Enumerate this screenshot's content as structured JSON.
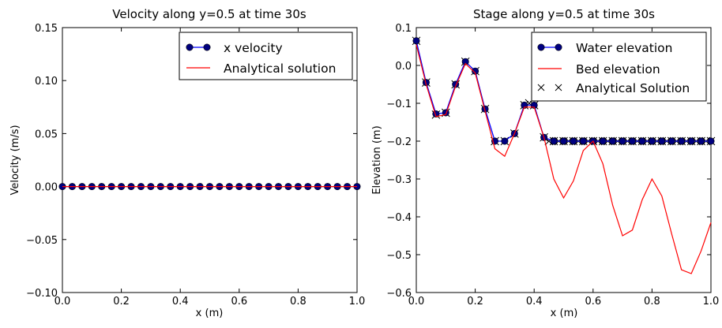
{
  "chart_data": [
    {
      "type": "line",
      "title": "Velocity along y=0.5 at time 30s",
      "xlabel": "x (m)",
      "ylabel": "Velocity (m/s)",
      "xlim": [
        0.0,
        1.0
      ],
      "ylim": [
        -0.1,
        0.15
      ],
      "xticks": [
        "0.0",
        "0.2",
        "0.4",
        "0.6",
        "0.8",
        "1.0"
      ],
      "yticks": [
        "−0.10",
        "−0.05",
        "0.00",
        "0.05",
        "0.10",
        "0.15"
      ],
      "grid": false,
      "legend_position": "top-right",
      "x": [
        0.0,
        0.0333,
        0.0667,
        0.1,
        0.1333,
        0.1667,
        0.2,
        0.2333,
        0.2667,
        0.3,
        0.3333,
        0.3667,
        0.4,
        0.4333,
        0.4667,
        0.5,
        0.5333,
        0.5667,
        0.6,
        0.6333,
        0.6667,
        0.7,
        0.7333,
        0.7667,
        0.8,
        0.8333,
        0.8667,
        0.9,
        0.9333,
        0.9667,
        1.0
      ],
      "series": [
        {
          "name": "x velocity",
          "style": "line-markers",
          "color": "#0000ff",
          "marker_color": "#00007f",
          "values": [
            0,
            0,
            0,
            0,
            0,
            0,
            0,
            0,
            0,
            0,
            0,
            0,
            0,
            0,
            0,
            0,
            0,
            0,
            0,
            0,
            0,
            0,
            0,
            0,
            0,
            0,
            0,
            0,
            0,
            0,
            0
          ]
        },
        {
          "name": "Analytical solution",
          "style": "line",
          "color": "#ff0000",
          "values": [
            0,
            0,
            0,
            0,
            0,
            0,
            0,
            0,
            0,
            0,
            0,
            0,
            0,
            0,
            0,
            0,
            0,
            0,
            0,
            0,
            0,
            0,
            0,
            0,
            0,
            0,
            0,
            0,
            0,
            0,
            0
          ]
        }
      ]
    },
    {
      "type": "line",
      "title": "Stage along y=0.5 at time 30s",
      "xlabel": "x (m)",
      "ylabel": "Elevation (m)",
      "xlim": [
        0.0,
        1.0
      ],
      "ylim": [
        -0.6,
        0.1
      ],
      "xticks": [
        "0.0",
        "0.2",
        "0.4",
        "0.6",
        "0.8",
        "1.0"
      ],
      "yticks": [
        "−0.6",
        "−0.5",
        "−0.4",
        "−0.3",
        "−0.2",
        "−0.1",
        "0.0",
        "0.1"
      ],
      "grid": false,
      "legend_position": "top-right",
      "x": [
        0.0,
        0.0333,
        0.0667,
        0.1,
        0.1333,
        0.1667,
        0.2,
        0.2333,
        0.2667,
        0.3,
        0.3333,
        0.3667,
        0.4,
        0.4333,
        0.4667,
        0.5,
        0.5333,
        0.5667,
        0.6,
        0.6333,
        0.6667,
        0.7,
        0.7333,
        0.7667,
        0.8,
        0.8333,
        0.8667,
        0.9,
        0.9333,
        0.9667,
        1.0
      ],
      "series": [
        {
          "name": "Water elevation",
          "style": "line-markers",
          "color": "#0000ff",
          "marker_color": "#00007f",
          "values": [
            0.065,
            -0.045,
            -0.128,
            -0.125,
            -0.05,
            0.01,
            -0.015,
            -0.115,
            -0.2,
            -0.2,
            -0.18,
            -0.105,
            -0.105,
            -0.19,
            -0.2,
            -0.2,
            -0.2,
            -0.2,
            -0.2,
            -0.2,
            -0.2,
            -0.2,
            -0.2,
            -0.2,
            -0.2,
            -0.2,
            -0.2,
            -0.2,
            -0.2,
            -0.2,
            -0.2
          ]
        },
        {
          "name": "Bed elevation",
          "style": "line",
          "color": "#ff0000",
          "x": [
            0.0,
            0.0333,
            0.0667,
            0.1,
            0.1333,
            0.1667,
            0.2,
            0.2333,
            0.2667,
            0.3,
            0.3333,
            0.3667,
            0.4,
            0.4333,
            0.4667,
            0.5,
            0.5333,
            0.5667,
            0.6,
            0.6333,
            0.6667,
            0.7,
            0.7333,
            0.7667,
            0.8,
            0.8333,
            0.8667,
            0.9,
            0.9333,
            0.9667,
            1.0
          ],
          "values": [
            0.055,
            -0.05,
            -0.135,
            -0.13,
            -0.055,
            0.005,
            -0.02,
            -0.12,
            -0.22,
            -0.24,
            -0.18,
            -0.11,
            -0.11,
            -0.19,
            -0.3,
            -0.35,
            -0.305,
            -0.225,
            -0.2,
            -0.26,
            -0.37,
            -0.45,
            -0.435,
            -0.355,
            -0.3,
            -0.345,
            -0.445,
            -0.54,
            -0.55,
            -0.49,
            -0.415
          ]
        },
        {
          "name": "Analytical Solution",
          "style": "markers-x",
          "color": "#000000",
          "x": [
            0.0,
            0.0333,
            0.0667,
            0.1,
            0.1333,
            0.1667,
            0.2,
            0.2333,
            0.2667,
            0.3,
            0.3333,
            0.3667,
            0.3833,
            0.4,
            0.4333,
            0.45,
            0.4667,
            0.4833,
            0.5,
            0.5167,
            0.5333,
            0.55,
            0.5667,
            0.5833,
            0.6,
            0.6167,
            0.6333,
            0.65,
            0.6667,
            0.6833,
            0.7,
            0.7167,
            0.7333,
            0.75,
            0.7667,
            0.7833,
            0.8,
            0.8167,
            0.8333,
            0.85,
            0.8667,
            0.8833,
            0.9,
            0.9167,
            0.9333,
            0.95,
            0.9667,
            0.9833,
            1.0
          ],
          "values": [
            0.065,
            -0.045,
            -0.13,
            -0.125,
            -0.05,
            0.01,
            -0.015,
            -0.115,
            -0.2,
            -0.2,
            -0.18,
            -0.105,
            -0.1,
            -0.105,
            -0.19,
            -0.2,
            -0.2,
            -0.2,
            -0.2,
            -0.2,
            -0.2,
            -0.2,
            -0.2,
            -0.2,
            -0.2,
            -0.2,
            -0.2,
            -0.2,
            -0.2,
            -0.2,
            -0.2,
            -0.2,
            -0.2,
            -0.2,
            -0.2,
            -0.2,
            -0.2,
            -0.2,
            -0.2,
            -0.2,
            -0.2,
            -0.2,
            -0.2,
            -0.2,
            -0.2,
            -0.2,
            -0.2,
            -0.2,
            -0.2
          ]
        }
      ]
    }
  ]
}
